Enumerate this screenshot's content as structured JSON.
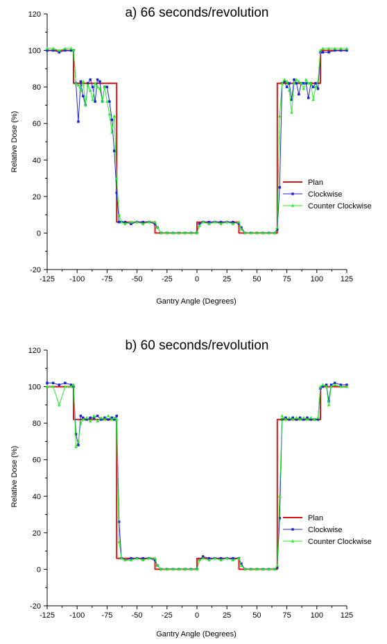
{
  "colors": {
    "plan": "#e01414",
    "clockwise": "#1a22d8",
    "counter_clockwise": "#22ee22",
    "axis": "#000000"
  },
  "chart_data": [
    {
      "type": "line",
      "title": "a) 66 seconds/revolution",
      "xlabel": "Gantry Angle (Degrees)",
      "ylabel": "Relative Dose (%)",
      "xlim": [
        -125,
        125
      ],
      "ylim": [
        -20,
        120
      ],
      "xticks": [
        "-125",
        "-100",
        "-75",
        "-50",
        "-25",
        "0",
        "25",
        "50",
        "75",
        "100",
        "125"
      ],
      "yticks": [
        "-20",
        "0",
        "20",
        "40",
        "60",
        "80",
        "100",
        "120"
      ],
      "legend_position": "right-middle",
      "series": [
        {
          "name": "Plan",
          "marker": "none",
          "x": [
            -125,
            -103,
            -103,
            -67,
            -67,
            -35,
            -35,
            0,
            0,
            35,
            35,
            67,
            67,
            103,
            103,
            125
          ],
          "y": [
            100,
            100,
            82,
            82,
            6,
            6,
            0,
            0,
            6,
            6,
            0,
            0,
            82,
            82,
            100,
            100
          ]
        },
        {
          "name": "Clockwise",
          "marker": "square",
          "x": [
            -125,
            -120,
            -115,
            -110,
            -105,
            -103,
            -101,
            -99,
            -97,
            -95,
            -93,
            -91,
            -89,
            -87,
            -85,
            -83,
            -81,
            -79,
            -77,
            -75,
            -73,
            -71,
            -69,
            -67,
            -65,
            -63,
            -60,
            -55,
            -50,
            -45,
            -40,
            -35,
            -33,
            -30,
            -25,
            -20,
            -15,
            -10,
            -5,
            0,
            2,
            5,
            10,
            15,
            20,
            25,
            30,
            35,
            37,
            40,
            45,
            50,
            55,
            60,
            65,
            67,
            69,
            71,
            73,
            75,
            77,
            79,
            81,
            83,
            85,
            87,
            89,
            91,
            93,
            95,
            97,
            99,
            101,
            103,
            105,
            110,
            115,
            120,
            125
          ],
          "y": [
            100,
            100,
            99,
            100,
            100,
            100,
            82,
            61,
            83,
            75,
            70,
            82,
            84,
            80,
            72,
            84,
            83,
            72,
            80,
            80,
            72,
            62,
            45,
            22,
            6,
            6,
            6,
            5,
            6,
            6,
            6,
            5,
            3,
            0,
            0,
            0,
            0,
            0,
            0,
            0,
            5,
            6,
            6,
            6,
            6,
            6,
            6,
            5,
            3,
            0,
            0,
            0,
            0,
            0,
            0,
            2,
            25,
            82,
            83,
            80,
            82,
            73,
            84,
            82,
            76,
            82,
            82,
            82,
            74,
            82,
            80,
            82,
            79,
            99,
            99,
            99,
            100,
            100,
            100
          ]
        },
        {
          "name": "Counter Clockwise",
          "marker": "triangle",
          "x": [
            -125,
            -120,
            -115,
            -110,
            -105,
            -103,
            -101,
            -99,
            -97,
            -95,
            -93,
            -91,
            -89,
            -87,
            -85,
            -83,
            -81,
            -79,
            -77,
            -75,
            -73,
            -71,
            -69,
            -67,
            -65,
            -63,
            -60,
            -55,
            -50,
            -45,
            -40,
            -35,
            -33,
            -30,
            -25,
            -20,
            -15,
            -10,
            -5,
            0,
            2,
            5,
            10,
            15,
            20,
            25,
            30,
            35,
            37,
            40,
            45,
            50,
            55,
            60,
            65,
            67,
            69,
            71,
            73,
            75,
            77,
            79,
            81,
            83,
            85,
            87,
            89,
            91,
            93,
            95,
            97,
            99,
            101,
            103,
            105,
            110,
            115,
            120,
            125
          ],
          "y": [
            101,
            101,
            100,
            101,
            101,
            100,
            82,
            81,
            78,
            83,
            70,
            81,
            78,
            73,
            82,
            80,
            79,
            72,
            80,
            72,
            65,
            55,
            64,
            30,
            10,
            6,
            5,
            6,
            6,
            5,
            6,
            6,
            3,
            0,
            0,
            0,
            0,
            0,
            0,
            0,
            4,
            6,
            5,
            6,
            5,
            6,
            5,
            6,
            2,
            0,
            0,
            0,
            0,
            0,
            0,
            3,
            64,
            82,
            84,
            83,
            78,
            66,
            82,
            84,
            83,
            82,
            79,
            84,
            82,
            82,
            73,
            80,
            83,
            100,
            101,
            101,
            101,
            101,
            101
          ]
        }
      ]
    },
    {
      "type": "line",
      "title": "b) 60 seconds/revolution",
      "xlabel": "Gantry Angle (Degrees)",
      "ylabel": "Relative Dose (%)",
      "xlim": [
        -125,
        125
      ],
      "ylim": [
        -20,
        120
      ],
      "xticks": [
        "-125",
        "-100",
        "-75",
        "-50",
        "-25",
        "0",
        "25",
        "50",
        "75",
        "100",
        "125"
      ],
      "yticks": [
        "-20",
        "0",
        "20",
        "40",
        "60",
        "80",
        "100",
        "120"
      ],
      "legend_position": "right-middle",
      "series": [
        {
          "name": "Plan",
          "marker": "none",
          "x": [
            -125,
            -103,
            -103,
            -67,
            -67,
            -35,
            -35,
            0,
            0,
            35,
            35,
            67,
            67,
            103,
            103,
            125
          ],
          "y": [
            100,
            100,
            82,
            82,
            6,
            6,
            0,
            0,
            6,
            6,
            0,
            0,
            82,
            82,
            100,
            100
          ]
        },
        {
          "name": "Clockwise",
          "marker": "square",
          "x": [
            -125,
            -120,
            -115,
            -110,
            -105,
            -103,
            -101,
            -99,
            -97,
            -95,
            -92,
            -89,
            -86,
            -83,
            -80,
            -77,
            -74,
            -71,
            -69,
            -67,
            -65,
            -63,
            -60,
            -55,
            -50,
            -45,
            -40,
            -35,
            -33,
            -30,
            -25,
            -20,
            -15,
            -10,
            -5,
            0,
            2,
            5,
            10,
            15,
            20,
            25,
            30,
            35,
            37,
            40,
            45,
            50,
            55,
            60,
            65,
            67,
            69,
            71,
            74,
            77,
            80,
            83,
            86,
            89,
            92,
            95,
            98,
            101,
            103,
            105,
            108,
            110,
            112,
            115,
            120,
            125
          ],
          "y": [
            102,
            102,
            101,
            102,
            101,
            100,
            74,
            68,
            84,
            83,
            82,
            83,
            83,
            84,
            82,
            83,
            82,
            83,
            82,
            84,
            26,
            6,
            5,
            6,
            6,
            6,
            6,
            5,
            2,
            0,
            0,
            0,
            0,
            0,
            0,
            0,
            5,
            7,
            6,
            6,
            6,
            6,
            6,
            6,
            3,
            0,
            0,
            0,
            0,
            0,
            0,
            1,
            28,
            82,
            83,
            82,
            83,
            82,
            83,
            82,
            83,
            82,
            82,
            82,
            99,
            100,
            101,
            92,
            101,
            102,
            101,
            101
          ]
        },
        {
          "name": "Counter Clockwise",
          "marker": "triangle",
          "x": [
            -125,
            -120,
            -115,
            -110,
            -105,
            -103,
            -101,
            -99,
            -97,
            -95,
            -92,
            -89,
            -86,
            -83,
            -80,
            -77,
            -74,
            -71,
            -69,
            -67,
            -65,
            -63,
            -60,
            -55,
            -50,
            -45,
            -40,
            -35,
            -33,
            -30,
            -25,
            -20,
            -15,
            -10,
            -5,
            0,
            2,
            5,
            10,
            15,
            20,
            25,
            30,
            35,
            37,
            40,
            45,
            50,
            55,
            60,
            65,
            67,
            69,
            71,
            74,
            77,
            80,
            83,
            86,
            89,
            92,
            95,
            98,
            101,
            103,
            105,
            108,
            110,
            112,
            115,
            120,
            125
          ],
          "y": [
            100,
            100,
            90,
            100,
            100,
            101,
            67,
            70,
            80,
            82,
            83,
            81,
            84,
            81,
            83,
            82,
            84,
            82,
            83,
            82,
            15,
            6,
            5,
            5,
            6,
            5,
            6,
            6,
            2,
            0,
            0,
            0,
            0,
            0,
            0,
            0,
            5,
            6,
            5,
            6,
            5,
            6,
            5,
            6,
            2,
            0,
            0,
            0,
            0,
            0,
            0,
            2,
            40,
            84,
            82,
            83,
            82,
            83,
            82,
            83,
            82,
            83,
            82,
            83,
            100,
            101,
            100,
            90,
            100,
            101,
            100,
            100
          ]
        }
      ]
    }
  ]
}
